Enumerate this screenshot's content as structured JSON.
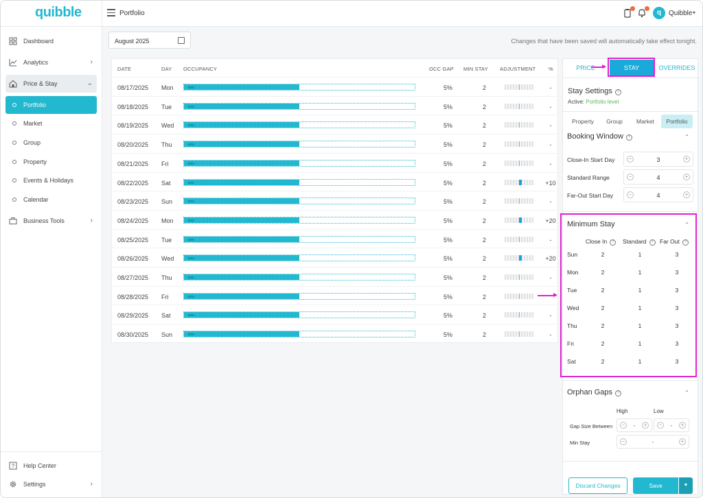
{
  "app": {
    "logo": "quibble",
    "page_title": "Portfolio"
  },
  "header": {
    "user_name": "Quibble",
    "avatar_letter": "q"
  },
  "sidebar": {
    "items": [
      {
        "label": "Dashboard",
        "icon": "dashboard-icon"
      },
      {
        "label": "Analytics",
        "icon": "analytics-icon"
      },
      {
        "label": "Price & Stay",
        "icon": "price-stay-icon"
      },
      {
        "label": "Portfolio"
      },
      {
        "label": "Market"
      },
      {
        "label": "Group"
      },
      {
        "label": "Property"
      },
      {
        "label": "Events & Holidays"
      },
      {
        "label": "Calendar"
      },
      {
        "label": "Business Tools",
        "icon": "briefcase-icon"
      },
      {
        "label": "Help Center",
        "icon": "help-icon"
      },
      {
        "label": "Settings",
        "icon": "gear-icon"
      }
    ]
  },
  "toolbar": {
    "date_value": "August 2025",
    "notice": "Changes that have been saved will automatically take effect tonight."
  },
  "table": {
    "headers": [
      "DATE",
      "DAY",
      "OCCUPANCY",
      "OCC GAP",
      "MIN STAY",
      "ADJUSTMENT",
      "%"
    ],
    "rows": [
      {
        "date": "08/17/2025",
        "day": "Mon",
        "occ": "50%",
        "occ_value": 0.5,
        "gap": "5%",
        "min": "2",
        "pct": "-",
        "adj": 0
      },
      {
        "date": "08/18/2025",
        "day": "Tue",
        "occ": "50%",
        "occ_value": 0.5,
        "gap": "5%",
        "min": "2",
        "pct": "-",
        "adj": 0
      },
      {
        "date": "08/19/2025",
        "day": "Wed",
        "occ": "50%",
        "occ_value": 0.5,
        "gap": "5%",
        "min": "2",
        "pct": "-",
        "adj": 0
      },
      {
        "date": "08/20/2025",
        "day": "Thu",
        "occ": "50%",
        "occ_value": 0.5,
        "gap": "5%",
        "min": "2",
        "pct": "-",
        "adj": 0
      },
      {
        "date": "08/21/2025",
        "day": "Fri",
        "occ": "50%",
        "occ_value": 0.5,
        "gap": "5%",
        "min": "2",
        "pct": "-",
        "adj": 0
      },
      {
        "date": "08/22/2025",
        "day": "Sat",
        "occ": "50%",
        "occ_value": 0.5,
        "gap": "5%",
        "min": "2",
        "pct": "+10",
        "adj": 10
      },
      {
        "date": "08/23/2025",
        "day": "Sun",
        "occ": "50%",
        "occ_value": 0.5,
        "gap": "5%",
        "min": "2",
        "pct": "-",
        "adj": 0
      },
      {
        "date": "08/24/2025",
        "day": "Mon",
        "occ": "50%",
        "occ_value": 0.5,
        "gap": "5%",
        "min": "2",
        "pct": "+20",
        "adj": 20
      },
      {
        "date": "08/25/2025",
        "day": "Tue",
        "occ": "50%",
        "occ_value": 0.5,
        "gap": "5%",
        "min": "2",
        "pct": "-",
        "adj": 0
      },
      {
        "date": "08/26/2025",
        "day": "Wed",
        "occ": "50%",
        "occ_value": 0.5,
        "gap": "5%",
        "min": "2",
        "pct": "+20",
        "adj": 20
      },
      {
        "date": "08/27/2025",
        "day": "Thu",
        "occ": "50%",
        "occ_value": 0.5,
        "gap": "5%",
        "min": "2",
        "pct": "-",
        "adj": 0
      },
      {
        "date": "08/28/2025",
        "day": "Fri",
        "occ": "50%",
        "occ_value": 0.5,
        "gap": "5%",
        "min": "2",
        "pct": "",
        "adj": 0
      },
      {
        "date": "08/29/2025",
        "day": "Sat",
        "occ": "50%",
        "occ_value": 0.5,
        "gap": "5%",
        "min": "2",
        "pct": "-",
        "adj": 0
      },
      {
        "date": "08/30/2025",
        "day": "Sun",
        "occ": "50%",
        "occ_value": 0.5,
        "gap": "5%",
        "min": "2",
        "pct": "-",
        "adj": 0
      }
    ]
  },
  "panel": {
    "tabs": [
      "PRICE",
      "STAY",
      "OVERRIDES"
    ],
    "title": "Stay Settings",
    "active_label": "Active:",
    "active_value": "Portfolio level",
    "levels": [
      "Property",
      "Group",
      "Market",
      "Portfolio"
    ],
    "booking_window": {
      "title": "Booking Window",
      "rows": [
        {
          "label": "Close-In Start Day",
          "value": "3"
        },
        {
          "label": "Standard Range",
          "value": "4"
        },
        {
          "label": "Far-Out Start Day",
          "value": "4"
        }
      ]
    },
    "minimum_stay": {
      "title": "Minimum Stay",
      "columns": [
        "Close In",
        "Standard",
        "Far Out"
      ],
      "rows": [
        {
          "day": "Sun",
          "values": [
            "2",
            "1",
            "3"
          ]
        },
        {
          "day": "Mon",
          "values": [
            "2",
            "1",
            "3"
          ]
        },
        {
          "day": "Tue",
          "values": [
            "2",
            "1",
            "3"
          ]
        },
        {
          "day": "Wed",
          "values": [
            "2",
            "1",
            "3"
          ]
        },
        {
          "day": "Thu",
          "values": [
            "2",
            "1",
            "3"
          ]
        },
        {
          "day": "Fri",
          "values": [
            "2",
            "1",
            "3"
          ]
        },
        {
          "day": "Sat",
          "values": [
            "2",
            "1",
            "3"
          ]
        }
      ]
    },
    "orphan_gaps": {
      "title": "Orphan Gaps",
      "col_high": "High",
      "col_low": "Low",
      "gap_label": "Gap Size Between",
      "gap_value_high": "-",
      "gap_value_low": "-",
      "min_label": "Min Stay",
      "min_value": "-"
    },
    "discard_label": "Discard Changes",
    "save_label": "Save"
  },
  "colors": {
    "accent": "#22b8cf",
    "active_tab": "#1aa9d8",
    "annotation": "#e020d0",
    "active_level": "#5cb85c"
  }
}
